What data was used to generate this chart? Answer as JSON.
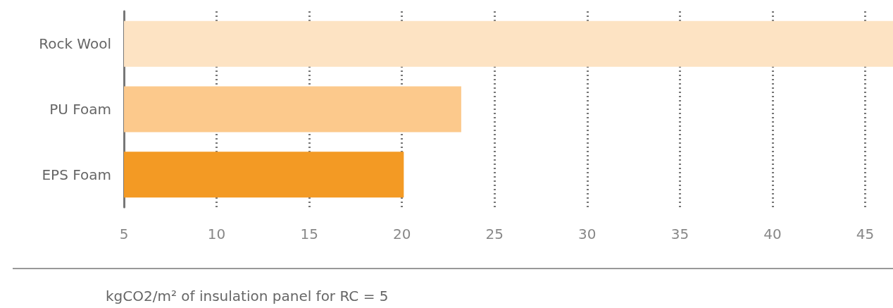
{
  "chart_data": {
    "type": "bar",
    "orientation": "horizontal",
    "xlabel": "kgCO2/m² of insulation panel for RC = 5",
    "categories": [
      "Rock Wool",
      "PU Foam",
      "EPS Foam"
    ],
    "values": [
      46.5,
      23.2,
      20.1
    ],
    "colors": [
      "#fde3c3",
      "#fcc98c",
      "#f39a24"
    ],
    "xlim": [
      5,
      46.5
    ],
    "xticks": [
      5,
      10,
      15,
      20,
      25,
      30,
      35,
      40,
      45
    ],
    "grid": "x"
  }
}
